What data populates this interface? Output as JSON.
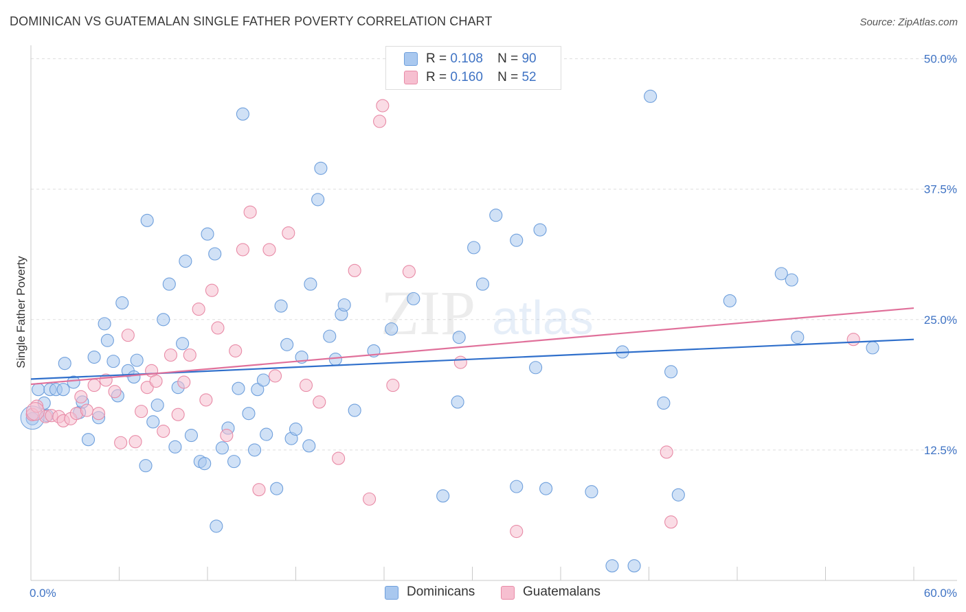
{
  "title": "DOMINICAN VS GUATEMALAN SINGLE FATHER POVERTY CORRELATION CHART",
  "source": "Source: ZipAtlas.com",
  "watermark": {
    "zip": "ZIP",
    "atlas": "atlas"
  },
  "legend": {
    "rows": [
      {
        "r_label": "R =",
        "r_value": "0.108",
        "n_label": "N =",
        "n_value": "90"
      },
      {
        "r_label": "R =",
        "r_value": "0.160",
        "n_label": "N =",
        "n_value": "52"
      }
    ]
  },
  "bottom_legend": [
    "Dominicans",
    "Guatemalans"
  ],
  "colors": {
    "blue_fill": "#a9c8ef",
    "blue_stroke": "#6e9fdc",
    "blue_line": "#2f6fcb",
    "pink_fill": "#f6bfd0",
    "pink_stroke": "#e88aa6",
    "pink_line": "#e0709a",
    "tick_text": "#3f73c4",
    "grid": "#dddddd"
  },
  "chart_data": {
    "type": "scatter",
    "title": "DOMINICAN VS GUATEMALAN SINGLE FATHER POVERTY CORRELATION CHART",
    "xlabel": "",
    "ylabel": "Single Father Poverty",
    "xlim": [
      0,
      60
    ],
    "ylim": [
      0,
      50.5
    ],
    "x_tick_labels": [
      "0.0%",
      "60.0%"
    ],
    "y_ticks": [
      12.5,
      25.0,
      37.5,
      50.0
    ],
    "y_tick_labels": [
      "12.5%",
      "25.0%",
      "37.5%",
      "50.0%"
    ],
    "grid": true,
    "legend_placement": "top-center",
    "series": [
      {
        "name": "Dominicans",
        "r": 0.108,
        "n": 90,
        "trend": [
          [
            0,
            19.3
          ],
          [
            60,
            23.1
          ]
        ],
        "points": [
          [
            0.1,
            15.5
          ],
          [
            0.5,
            18.3
          ],
          [
            0.9,
            17.0
          ],
          [
            1.1,
            15.8
          ],
          [
            1.3,
            18.3
          ],
          [
            1.7,
            18.3
          ],
          [
            2.2,
            18.3
          ],
          [
            2.3,
            20.8
          ],
          [
            2.9,
            19.0
          ],
          [
            3.3,
            16.1
          ],
          [
            3.5,
            17.1
          ],
          [
            3.9,
            13.5
          ],
          [
            4.3,
            21.4
          ],
          [
            4.6,
            15.6
          ],
          [
            5.0,
            24.6
          ],
          [
            5.2,
            23.0
          ],
          [
            5.6,
            21.0
          ],
          [
            5.9,
            17.7
          ],
          [
            6.2,
            26.6
          ],
          [
            6.6,
            20.1
          ],
          [
            7.0,
            19.5
          ],
          [
            7.2,
            21.1
          ],
          [
            7.8,
            11.0
          ],
          [
            7.9,
            34.5
          ],
          [
            8.3,
            15.2
          ],
          [
            8.6,
            16.8
          ],
          [
            9.0,
            25.0
          ],
          [
            9.4,
            28.4
          ],
          [
            9.8,
            12.8
          ],
          [
            10.0,
            18.5
          ],
          [
            10.3,
            22.7
          ],
          [
            10.5,
            30.6
          ],
          [
            10.9,
            13.9
          ],
          [
            11.5,
            11.4
          ],
          [
            11.8,
            11.2
          ],
          [
            12.0,
            33.2
          ],
          [
            12.5,
            31.3
          ],
          [
            12.6,
            5.2
          ],
          [
            13.0,
            12.7
          ],
          [
            13.4,
            14.6
          ],
          [
            13.8,
            11.4
          ],
          [
            14.1,
            18.4
          ],
          [
            14.4,
            44.7
          ],
          [
            14.8,
            16.0
          ],
          [
            15.2,
            12.5
          ],
          [
            15.4,
            18.3
          ],
          [
            15.8,
            19.2
          ],
          [
            16.0,
            14.0
          ],
          [
            16.7,
            8.8
          ],
          [
            17.0,
            26.3
          ],
          [
            17.4,
            22.6
          ],
          [
            17.7,
            13.6
          ],
          [
            18.0,
            14.5
          ],
          [
            18.4,
            21.4
          ],
          [
            18.9,
            12.9
          ],
          [
            19.0,
            28.4
          ],
          [
            19.5,
            36.5
          ],
          [
            19.7,
            39.5
          ],
          [
            20.3,
            23.4
          ],
          [
            20.7,
            21.2
          ],
          [
            21.1,
            25.5
          ],
          [
            21.3,
            26.4
          ],
          [
            22.0,
            16.3
          ],
          [
            23.3,
            22.0
          ],
          [
            24.5,
            24.1
          ],
          [
            26.0,
            27.0
          ],
          [
            28.0,
            8.1
          ],
          [
            29.0,
            17.1
          ],
          [
            29.1,
            23.3
          ],
          [
            30.1,
            31.9
          ],
          [
            30.7,
            28.4
          ],
          [
            31.6,
            35.0
          ],
          [
            33.0,
            9.0
          ],
          [
            33.0,
            32.6
          ],
          [
            34.3,
            20.4
          ],
          [
            34.6,
            33.6
          ],
          [
            35.0,
            8.8
          ],
          [
            38.1,
            8.5
          ],
          [
            39.5,
            1.4
          ],
          [
            40.2,
            21.9
          ],
          [
            41.0,
            1.4
          ],
          [
            42.1,
            46.4
          ],
          [
            43.0,
            17.0
          ],
          [
            43.5,
            20.0
          ],
          [
            44.0,
            8.2
          ],
          [
            47.5,
            26.8
          ],
          [
            51.0,
            29.4
          ],
          [
            51.7,
            28.8
          ],
          [
            52.1,
            23.3
          ],
          [
            57.2,
            22.3
          ]
        ]
      },
      {
        "name": "Guatemalans",
        "r": 0.16,
        "n": 52,
        "trend": [
          [
            0,
            18.8
          ],
          [
            60,
            26.1
          ]
        ],
        "points": [
          [
            0.1,
            15.9
          ],
          [
            0.4,
            16.7
          ],
          [
            1.0,
            15.7
          ],
          [
            1.4,
            15.8
          ],
          [
            1.9,
            15.7
          ],
          [
            2.2,
            15.3
          ],
          [
            2.7,
            15.5
          ],
          [
            3.1,
            16.0
          ],
          [
            3.4,
            17.6
          ],
          [
            3.8,
            16.3
          ],
          [
            4.3,
            18.7
          ],
          [
            4.6,
            16.0
          ],
          [
            5.1,
            19.2
          ],
          [
            5.7,
            18.1
          ],
          [
            6.1,
            13.2
          ],
          [
            6.6,
            23.5
          ],
          [
            7.1,
            13.3
          ],
          [
            7.5,
            16.2
          ],
          [
            7.9,
            18.5
          ],
          [
            8.2,
            20.1
          ],
          [
            8.5,
            19.1
          ],
          [
            9.0,
            14.3
          ],
          [
            9.5,
            21.6
          ],
          [
            10.0,
            15.9
          ],
          [
            10.4,
            19.0
          ],
          [
            10.8,
            21.6
          ],
          [
            11.4,
            26.0
          ],
          [
            11.9,
            17.3
          ],
          [
            12.3,
            27.8
          ],
          [
            12.7,
            24.2
          ],
          [
            13.3,
            13.9
          ],
          [
            13.9,
            22.0
          ],
          [
            14.4,
            31.7
          ],
          [
            14.9,
            35.3
          ],
          [
            15.5,
            8.7
          ],
          [
            16.2,
            31.7
          ],
          [
            16.6,
            19.6
          ],
          [
            17.5,
            33.3
          ],
          [
            18.7,
            18.7
          ],
          [
            19.6,
            17.1
          ],
          [
            20.9,
            11.7
          ],
          [
            22.0,
            29.7
          ],
          [
            23.0,
            7.8
          ],
          [
            23.7,
            44.0
          ],
          [
            23.9,
            45.5
          ],
          [
            24.6,
            18.7
          ],
          [
            25.7,
            29.6
          ],
          [
            29.2,
            20.9
          ],
          [
            33.0,
            4.7
          ],
          [
            43.2,
            12.3
          ],
          [
            43.5,
            5.6
          ],
          [
            55.9,
            23.1
          ]
        ]
      }
    ]
  }
}
